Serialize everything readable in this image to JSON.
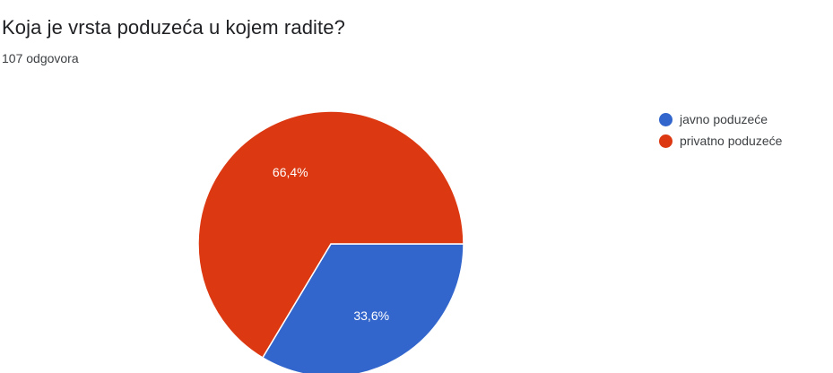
{
  "header": {
    "question": "Koja je vrsta poduzeća u kojem radite?",
    "responses": "107 odgovora"
  },
  "chart_data": {
    "type": "pie",
    "categories": [
      "javno poduzeće",
      "privatno poduzeće"
    ],
    "values": [
      33.6,
      66.4
    ],
    "labels": [
      "33,6%",
      "66,4%"
    ],
    "colors": [
      "#3366cc",
      "#dc3912"
    ],
    "start_angle_deg": 90,
    "legend_position": "right"
  }
}
